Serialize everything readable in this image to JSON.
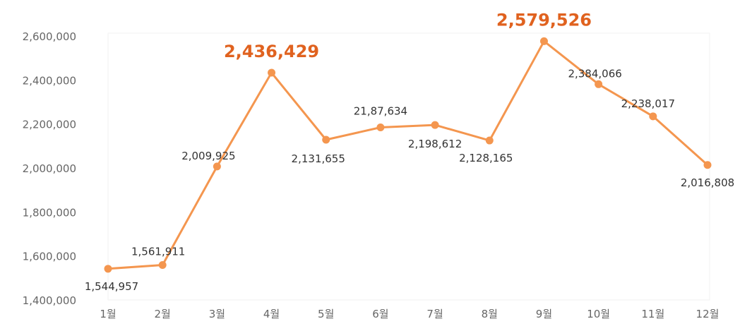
{
  "chart_data": {
    "type": "line",
    "categories": [
      "1월",
      "2월",
      "3월",
      "4월",
      "5월",
      "6월",
      "7월",
      "8월",
      "9월",
      "10월",
      "11월",
      "12월"
    ],
    "series": [
      {
        "values": [
          1544957,
          1561911,
          2009925,
          2436429,
          2131655,
          2187634,
          2198612,
          2128165,
          2579526,
          2384066,
          2238017,
          2016808
        ],
        "labels": [
          "1,544,957",
          "1,561,911",
          "2,009,925",
          "2,436,429",
          "2,131,655",
          "21,87,634",
          "2,198,612",
          "2,128,165",
          "2,579,526",
          "2,384,066",
          "2,238,017",
          "2,016,808"
        ],
        "highlight": [
          3,
          8
        ]
      }
    ],
    "ylim": [
      1400000,
      2600000
    ],
    "yticks": [
      1400000,
      1600000,
      1800000,
      2000000,
      2200000,
      2400000,
      2600000
    ],
    "ytick_labels": [
      "1,400,000",
      "1,600,000",
      "1,800,000",
      "2,000,000",
      "2,200,000",
      "2,400,000",
      "2,600,000"
    ],
    "grid": false,
    "line_color": "#f4964f",
    "highlight_color": "#e0621f"
  }
}
